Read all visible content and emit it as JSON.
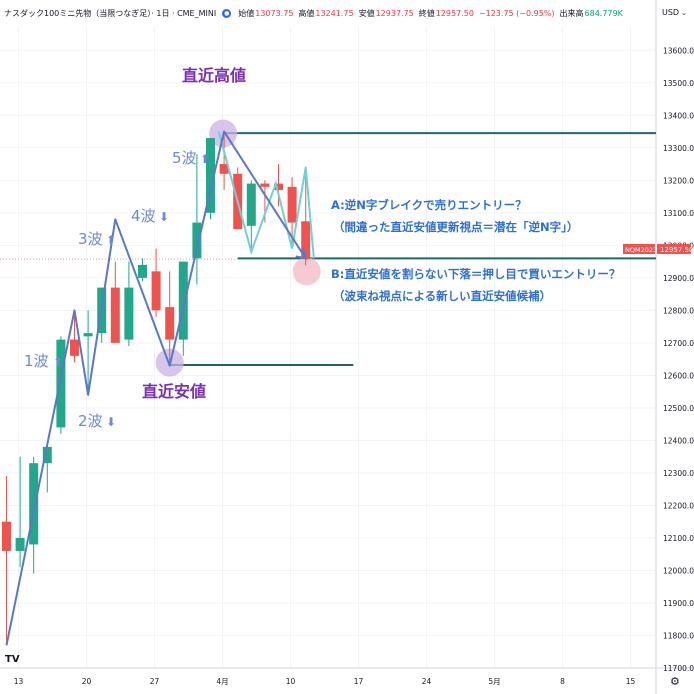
{
  "header": {
    "symbol": "ナスダック100ミニ先物（当限つなぎ足）· 1日 · CME_MINI",
    "live_icon": "live-dot-icon",
    "open_label": "始値",
    "open": "13073.75",
    "high_label": "高値",
    "high": "13241.75",
    "low_label": "安値",
    "low": "12937.75",
    "close_label": "終値",
    "close": "12957.50",
    "change": "−123.75 (−0.95%)",
    "volume_label": "出来高",
    "volume": "684.779K"
  },
  "axis": {
    "currency": "USD",
    "currency_icon": "chevron-down-icon",
    "price_tag_label": "NQM2023",
    "price_tag_value": "12957.50",
    "logo": "TV",
    "settings_icon": "gear-icon"
  },
  "annotations": {
    "recent_high": "直近高値",
    "recent_low": "直近安値",
    "wave1": "1波",
    "wave2": "2波",
    "wave3": "3波",
    "wave4": "4波",
    "wave5": "5波",
    "arrow_up": "⬆",
    "arrow_down": "⬇",
    "scenario_a_line1": "A:逆N字ブレイクで売りエントリー？",
    "scenario_a_line2": "（間違った直近安値更新視点＝潜在「逆N字」）",
    "scenario_b_line1": "B:直近安値を割らない下落＝押し目で買いエントリー？",
    "scenario_b_line2": "（波束ね視点による新しい直近安値候補）"
  },
  "colors": {
    "up": "#22a78b",
    "down": "#ef5350",
    "wave_line": "#5b78c7",
    "scenario_line": "#6fd0d6",
    "level_line": "#1f6b66",
    "recent_low_line": "#26605c",
    "annotation_purple": "#7b2fb8",
    "annotation_blue": "#2f6fd0",
    "wave_label": "#6a8ad8",
    "high_circle": "#c9b2e6",
    "low_circle_fill": "#f3b8c4",
    "price_tag": "#ef5350",
    "current_line": "#e27d7d"
  },
  "chart_data": {
    "type": "candlestick",
    "yaxis": {
      "range": [
        11700,
        13650
      ],
      "ticks": [
        13600,
        13500,
        13400,
        13300,
        13200,
        13100,
        13000,
        12900,
        12800,
        12700,
        12600,
        12500,
        12400,
        12300,
        12200,
        12100,
        12000,
        11900,
        11800,
        11700
      ]
    },
    "xaxis": {
      "ticks": [
        {
          "label": "13",
          "index": 0
        },
        {
          "label": "20",
          "index": 5
        },
        {
          "label": "27",
          "index": 10
        },
        {
          "label": "4月",
          "index": 15
        },
        {
          "label": "10",
          "index": 20
        },
        {
          "label": "17",
          "index": 25
        },
        {
          "label": "24",
          "index": 30
        },
        {
          "label": "5月",
          "index": 35
        },
        {
          "label": "8",
          "index": 40
        },
        {
          "label": "15",
          "index": 45
        }
      ],
      "last_index": 47
    },
    "candles": [
      {
        "i": 0,
        "o": 12150,
        "h": 12290,
        "l": 11770,
        "c": 12060
      },
      {
        "i": 1,
        "o": 12060,
        "h": 12350,
        "l": 12010,
        "c": 12100
      },
      {
        "i": 2,
        "o": 12080,
        "h": 12350,
        "l": 11990,
        "c": 12330
      },
      {
        "i": 3,
        "o": 12330,
        "h": 12390,
        "l": 12240,
        "c": 12380
      },
      {
        "i": 4,
        "o": 12440,
        "h": 12720,
        "l": 12420,
        "c": 12710
      },
      {
        "i": 5,
        "o": 12710,
        "h": 12800,
        "l": 12640,
        "c": 12660
      },
      {
        "i": 6,
        "o": 12720,
        "h": 12800,
        "l": 12540,
        "c": 12730
      },
      {
        "i": 7,
        "o": 12730,
        "h": 12870,
        "l": 12700,
        "c": 12870
      },
      {
        "i": 8,
        "o": 12870,
        "h": 12950,
        "l": 12700,
        "c": 12700
      },
      {
        "i": 9,
        "o": 12710,
        "h": 12950,
        "l": 12690,
        "c": 12870
      },
      {
        "i": 10,
        "o": 12900,
        "h": 12960,
        "l": 12890,
        "c": 12940
      },
      {
        "i": 11,
        "o": 12920,
        "h": 12990,
        "l": 12780,
        "c": 12800
      },
      {
        "i": 12,
        "o": 12810,
        "h": 12920,
        "l": 12630,
        "c": 12710
      },
      {
        "i": 13,
        "o": 12710,
        "h": 12950,
        "l": 12660,
        "c": 12950
      },
      {
        "i": 14,
        "o": 12960,
        "h": 13280,
        "l": 12880,
        "c": 13070
      },
      {
        "i": 15,
        "o": 13100,
        "h": 13330,
        "l": 13080,
        "c": 13330
      },
      {
        "i": 16,
        "o": 13250,
        "h": 13350,
        "l": 13170,
        "c": 13220
      },
      {
        "i": 17,
        "o": 13220,
        "h": 13240,
        "l": 13050,
        "c": 13050
      },
      {
        "i": 18,
        "o": 13060,
        "h": 13200,
        "l": 12980,
        "c": 13190
      },
      {
        "i": 19,
        "o": 13190,
        "h": 13200,
        "l": 13070,
        "c": 13180
      },
      {
        "i": 20,
        "o": 13190,
        "h": 13250,
        "l": 13120,
        "c": 13170
      },
      {
        "i": 21,
        "o": 13180,
        "h": 13210,
        "l": 13000,
        "c": 13070
      },
      {
        "i": 22,
        "o": 13074,
        "h": 13242,
        "l": 12938,
        "c": 12958
      }
    ],
    "wave_polyline": [
      {
        "i": 0,
        "p": 11770
      },
      {
        "i": 5,
        "p": 12800
      },
      {
        "i": 6,
        "p": 12540
      },
      {
        "i": 8,
        "p": 13080
      },
      {
        "i": 12,
        "p": 12630
      },
      {
        "i": 16,
        "p": 13350
      },
      {
        "i": 22,
        "p": 12960
      }
    ],
    "scenario_polyline": [
      {
        "i": 15.6,
        "p": 13350
      },
      {
        "i": 18,
        "p": 12980
      },
      {
        "i": 19.8,
        "p": 13190
      },
      {
        "i": 21,
        "p": 12990
      },
      {
        "i": 22,
        "p": 13240
      },
      {
        "i": 22.6,
        "p": 12960
      }
    ],
    "levels": [
      {
        "name": "recent-high",
        "price": 13345,
        "from_i": 16,
        "to_i": 49
      },
      {
        "name": "recent-low",
        "price": 12632,
        "from_i": 12,
        "to_i": 25.5
      },
      {
        "name": "new-low-candidate",
        "price": 12960,
        "from_i": 17,
        "to_i": 49
      }
    ],
    "current_price": 12957.5
  }
}
